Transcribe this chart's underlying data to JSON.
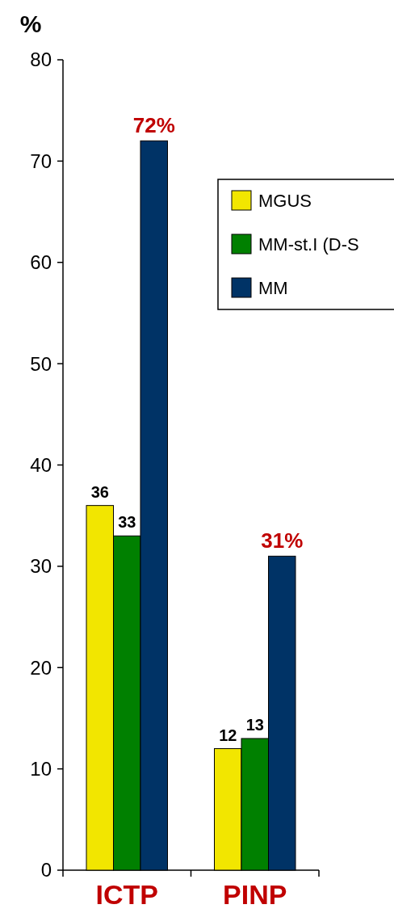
{
  "chart_data": {
    "type": "bar",
    "ylabel": "%",
    "categories": [
      "ICTP",
      "PINP"
    ],
    "series": [
      {
        "name": "MGUS",
        "color": "#f2e600",
        "values": [
          36,
          12
        ],
        "value_labels": [
          "36",
          "12"
        ]
      },
      {
        "name": "MM-st.I (D-S",
        "color": "#008000",
        "values": [
          33,
          13
        ],
        "value_labels": [
          "33",
          "13"
        ]
      },
      {
        "name": "MM",
        "color": "#003366",
        "values": [
          72,
          31
        ],
        "value_labels": [
          "72%",
          "31%"
        ]
      }
    ],
    "ylim": [
      0,
      80
    ],
    "yticks": [
      0,
      10,
      20,
      30,
      40,
      50,
      60,
      70,
      80
    ],
    "legend": "top right",
    "grid": false
  }
}
